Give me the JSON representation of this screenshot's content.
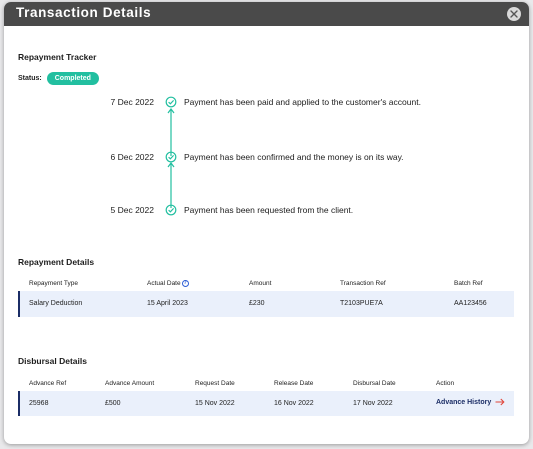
{
  "modal": {
    "title": "Transaction Details"
  },
  "tracker": {
    "title": "Repayment Tracker",
    "status_label": "Status:",
    "status_value": "Completed",
    "events": [
      {
        "date": "7 Dec 2022",
        "text": "Payment has been paid and applied to the customer's account."
      },
      {
        "date": "6 Dec 2022",
        "text": "Payment has been confirmed and the money is on its way."
      },
      {
        "date": "5 Dec 2022",
        "text": "Payment has been requested from the client."
      }
    ]
  },
  "repayment": {
    "title": "Repayment Details",
    "headers": [
      "Repayment Type",
      "Actual Date",
      "Amount",
      "Transaction Ref",
      "Batch Ref"
    ],
    "rows": [
      [
        "Salary Deduction",
        "15 April 2023",
        "£230",
        "T2103PUE7A",
        "AA123456"
      ]
    ]
  },
  "disbursal": {
    "title": "Disbursal Details",
    "headers": [
      "Advance Ref",
      "Advance Amount",
      "Request Date",
      "Release Date",
      "Disbursal Date",
      "Action"
    ],
    "rows": [
      [
        "25968",
        "£500",
        "15 Nov 2022",
        "16 Nov 2022",
        "17 Nov 2022"
      ]
    ],
    "action_label": "Advance History"
  },
  "colors": {
    "header_bg": "#4a4a4a",
    "accent_teal": "#22bfa0",
    "row_bg": "#eaf0fb",
    "navy": "#1b2d66",
    "arrow_red": "#e0463a"
  },
  "icons": {
    "close": "close-icon",
    "timeline": "check-circle-icon",
    "help": "question-circle-icon",
    "action": "arrow-right-icon"
  }
}
